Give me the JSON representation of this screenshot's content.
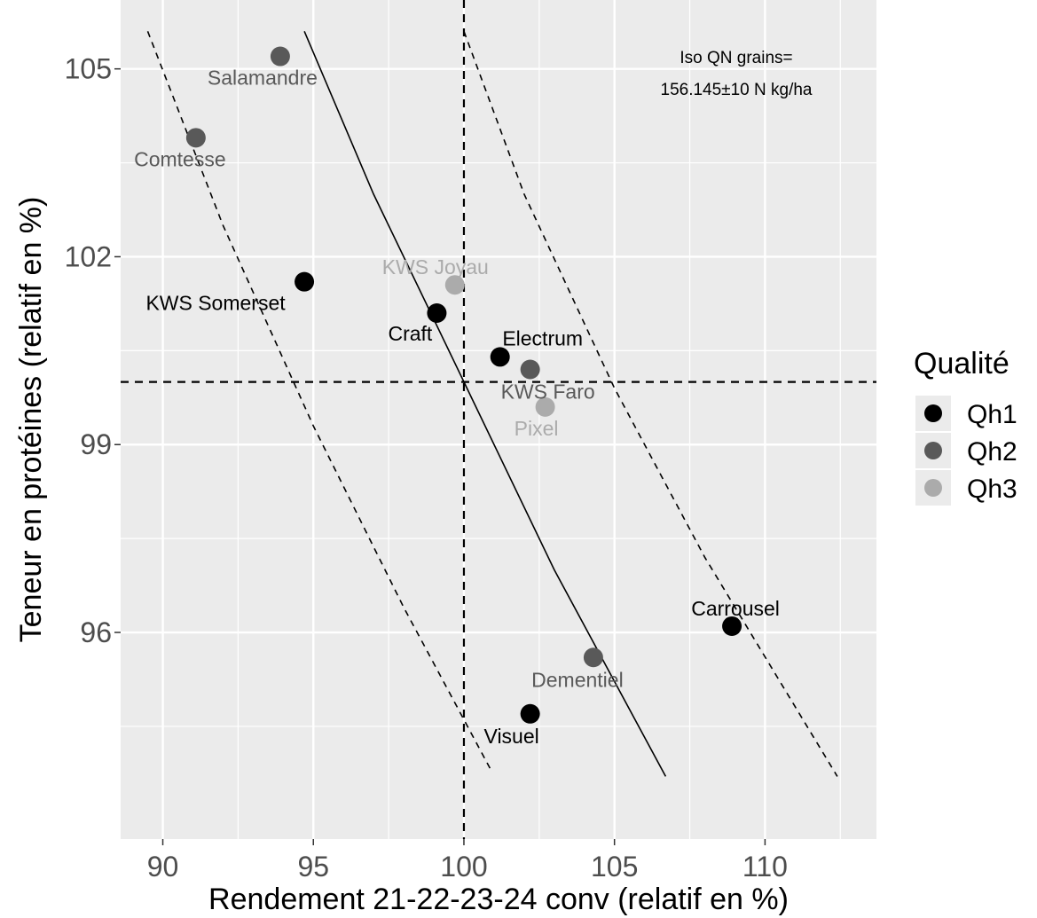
{
  "chart_data": {
    "type": "scatter",
    "title": "",
    "xlabel": "Rendement 21-22-23-24 conv (relatif en %)",
    "ylabel": "Teneur en protéines (relatif en %)",
    "xlim": [
      88.6,
      113.7
    ],
    "ylim": [
      92.7,
      106.1
    ],
    "x_ticks": [
      90,
      95,
      100,
      105,
      110
    ],
    "y_ticks": [
      96,
      99,
      102,
      105
    ],
    "x_tick_labels": [
      "90",
      "95",
      "100",
      "105",
      "110"
    ],
    "y_tick_labels": [
      "96",
      "99",
      "102",
      "105"
    ],
    "grid": true,
    "background": "#ebebeb",
    "legend": {
      "title": "Qualité",
      "position": "right",
      "entries": [
        {
          "label": "Qh1",
          "color": "#000000"
        },
        {
          "label": "Qh2",
          "color": "#595959"
        },
        {
          "label": "Qh3",
          "color": "#ababab"
        }
      ]
    },
    "annotation": [
      "Iso QN grains=",
      "156.145±10 N kg/ha"
    ],
    "reference_lines": {
      "x": 100,
      "y": 100
    },
    "points": [
      {
        "name": "Salamandre",
        "x": 93.9,
        "y": 105.2,
        "quality": "Qh2"
      },
      {
        "name": "Comtesse",
        "x": 91.1,
        "y": 103.9,
        "quality": "Qh2"
      },
      {
        "name": "KWS Somerset",
        "x": 94.7,
        "y": 101.6,
        "quality": "Qh1"
      },
      {
        "name": "KWS Joyau",
        "x": 99.7,
        "y": 101.55,
        "quality": "Qh3"
      },
      {
        "name": "Craft",
        "x": 99.1,
        "y": 101.1,
        "quality": "Qh1"
      },
      {
        "name": "Electrum",
        "x": 101.2,
        "y": 100.4,
        "quality": "Qh1"
      },
      {
        "name": "KWS Faro",
        "x": 102.2,
        "y": 100.2,
        "quality": "Qh2"
      },
      {
        "name": "Pixel",
        "x": 102.7,
        "y": 99.6,
        "quality": "Qh3"
      },
      {
        "name": "Carrousel",
        "x": 108.9,
        "y": 96.1,
        "quality": "Qh1"
      },
      {
        "name": "Dementiel",
        "x": 104.3,
        "y": 95.6,
        "quality": "Qh2"
      },
      {
        "name": "Visuel",
        "x": 102.2,
        "y": 94.7,
        "quality": "Qh1"
      }
    ],
    "iso_curves": [
      {
        "kind": "solid",
        "points": [
          [
            94.7,
            105.6
          ],
          [
            97.0,
            103.0
          ],
          [
            100.0,
            100.0
          ],
          [
            103.0,
            97.0
          ],
          [
            106.7,
            93.7
          ]
        ]
      },
      {
        "kind": "dashed",
        "points": [
          [
            89.5,
            105.6
          ],
          [
            92.0,
            102.5
          ],
          [
            95.0,
            99.3
          ],
          [
            98.0,
            96.4
          ],
          [
            100.9,
            93.8
          ]
        ]
      },
      {
        "kind": "dashed",
        "points": [
          [
            100.0,
            105.6
          ],
          [
            102.0,
            103.0
          ],
          [
            105.0,
            99.9
          ],
          [
            108.0,
            97.2
          ],
          [
            112.4,
            93.7
          ]
        ]
      }
    ]
  }
}
